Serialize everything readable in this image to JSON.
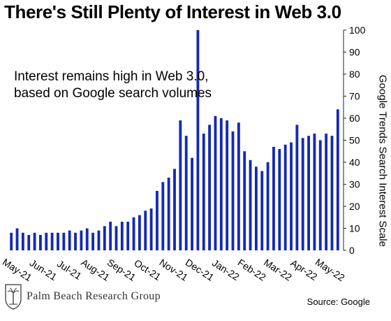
{
  "logo": {
    "name": "Palm Beach Research Group",
    "text": "Palm Beach Research Group"
  },
  "source": "Source: Google",
  "chart_data": {
    "type": "bar",
    "title": "There's Still Plenty of Interest in Web 3.0",
    "annotation": [
      "Interest remains high in Web 3.0,",
      "based on Google search volumes"
    ],
    "ylabel": "Google Trends Search Interest Scale",
    "xlabel": "",
    "ylim": [
      0,
      100
    ],
    "yticks": [
      0,
      10,
      20,
      30,
      40,
      50,
      60,
      70,
      80,
      90,
      100
    ],
    "x_tick_labels": [
      "May-21",
      "Jun-21",
      "Jul-21",
      "Aug-21",
      "Sep-21",
      "Oct-21",
      "Nov-21",
      "Dec-21",
      "Jan-22",
      "Feb-22",
      "Mar-22",
      "Apr-22",
      "May-22"
    ],
    "values": [
      8,
      10,
      8,
      7,
      8,
      7,
      8,
      8,
      8,
      8,
      9,
      8,
      9,
      10,
      8,
      9,
      11,
      13,
      11,
      13,
      13,
      15,
      16,
      18,
      19,
      27,
      31,
      33,
      37,
      59,
      52,
      42,
      100,
      53,
      57,
      61,
      60,
      59,
      54,
      58,
      45,
      41,
      38,
      36,
      40,
      47,
      46,
      48,
      49,
      57,
      51,
      52,
      53,
      50,
      53,
      52,
      64
    ],
    "bar_color": "#1429b5",
    "grid": false,
    "legend": "none"
  }
}
